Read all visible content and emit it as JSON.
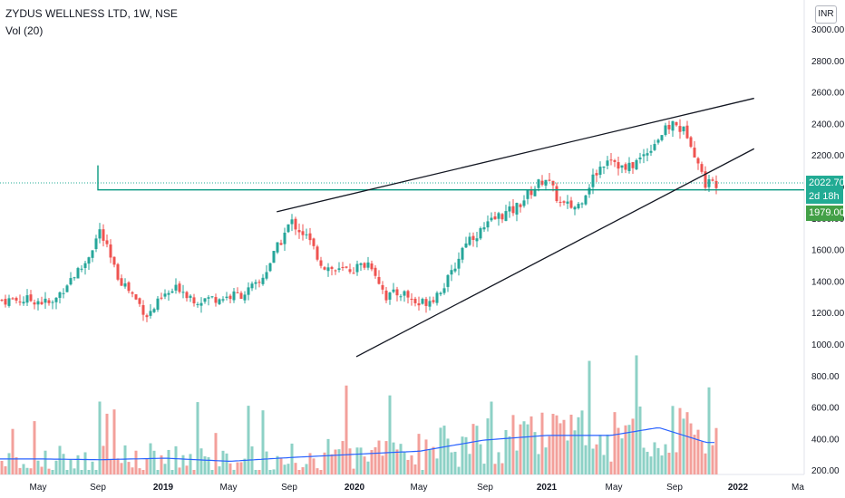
{
  "header": {
    "symbol_line": "ZYDUS WELLNESS LTD, 1W, NSE",
    "indicator": "Vol (20)"
  },
  "currency_badge": "INR",
  "price_tags": {
    "last_price": "2022.70",
    "countdown": "2d 18h",
    "level": "1979.00"
  },
  "colors": {
    "up": "#26a69a",
    "down": "#ef5350",
    "vol_up": "#8dd1c6",
    "vol_down": "#f3a09b",
    "vol_ma": "#2962ff",
    "support_line": "#089981",
    "level_tag": "#43a047",
    "last_tag": "#22ab94",
    "trendline": "#131722"
  },
  "chart_data": {
    "type": "candlestick",
    "title": "ZYDUS WELLNESS LTD, 1W, NSE",
    "price_axis": {
      "ticks": [
        "3000.00",
        "2800.00",
        "2600.00",
        "2400.00",
        "2200.00",
        "2000.00",
        "1800.00",
        "1600.00",
        "1400.00",
        "1200.00",
        "1000.00",
        "800.00",
        "600.00",
        "400.00",
        "200.00"
      ],
      "range": [
        200,
        3000
      ]
    },
    "time_axis": {
      "labels": [
        "May",
        "Sep",
        "2019",
        "May",
        "Sep",
        "2020",
        "May",
        "Sep",
        "2021",
        "May",
        "Sep",
        "2022",
        "Ma"
      ]
    },
    "indicator": "Vol (20)",
    "horizontal_level": 1979.0,
    "last_price": 2022.7,
    "price_path": [
      [
        "2018-05",
        1280
      ],
      [
        "2018-06",
        1250
      ],
      [
        "2018-07",
        1400
      ],
      [
        "2018-08",
        1500
      ],
      [
        "2018-09",
        1720
      ],
      [
        "2018-10",
        1450
      ],
      [
        "2018-11",
        1320
      ],
      [
        "2018-12",
        1180
      ],
      [
        "2019-01",
        1300
      ],
      [
        "2019-02",
        1360
      ],
      [
        "2019-03",
        1280
      ],
      [
        "2019-04",
        1290
      ],
      [
        "2019-05",
        1300
      ],
      [
        "2019-06",
        1320
      ],
      [
        "2019-07",
        1380
      ],
      [
        "2019-08",
        1580
      ],
      [
        "2019-09",
        1780
      ],
      [
        "2019-10",
        1680
      ],
      [
        "2019-11",
        1500
      ],
      [
        "2019-12",
        1460
      ],
      [
        "2020-01",
        1480
      ],
      [
        "2020-02",
        1520
      ],
      [
        "2020-03",
        1300
      ],
      [
        "2020-04",
        1330
      ],
      [
        "2020-05",
        1250
      ],
      [
        "2020-06",
        1300
      ],
      [
        "2020-07",
        1420
      ],
      [
        "2020-08",
        1660
      ],
      [
        "2020-09",
        1720
      ],
      [
        "2020-10",
        1810
      ],
      [
        "2020-11",
        1850
      ],
      [
        "2020-12",
        1960
      ],
      [
        "2021-01",
        2060
      ],
      [
        "2021-02",
        1880
      ],
      [
        "2021-03",
        1870
      ],
      [
        "2021-04",
        2060
      ],
      [
        "2021-05",
        2200
      ],
      [
        "2021-06",
        2100
      ],
      [
        "2021-07",
        2180
      ],
      [
        "2021-08",
        2300
      ],
      [
        "2021-09",
        2400
      ],
      [
        "2021-10",
        2330
      ],
      [
        "2021-11",
        2022.7
      ]
    ],
    "volume_ma_path": [
      [
        "2018-05",
        270
      ],
      [
        "2018-09",
        265
      ],
      [
        "2019-01",
        275
      ],
      [
        "2019-05",
        255
      ],
      [
        "2019-09",
        280
      ],
      [
        "2020-01",
        300
      ],
      [
        "2020-05",
        320
      ],
      [
        "2020-09",
        390
      ],
      [
        "2021-01",
        420
      ],
      [
        "2021-05",
        420
      ],
      [
        "2021-08",
        470
      ],
      [
        "2021-11",
        375
      ]
    ],
    "trendlines": [
      {
        "name": "upper",
        "from": [
          "2019-08",
          1840
        ],
        "to": [
          "2022-02",
          2560
        ]
      },
      {
        "name": "lower",
        "from": [
          "2020-01",
          920
        ],
        "to": [
          "2022-02",
          2240
        ]
      }
    ]
  }
}
